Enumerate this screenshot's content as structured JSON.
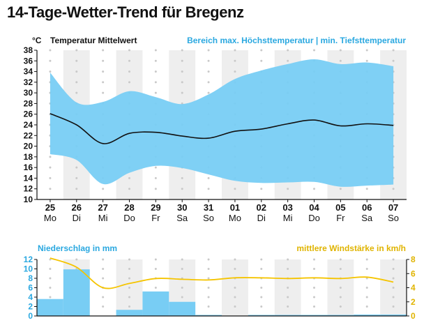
{
  "title": "14-Tage-Wetter-Trend für Bregenz",
  "colors": {
    "band": "#78cdf4",
    "mean_line": "#111111",
    "stripe": "#eeeeee",
    "dots": "#c9c9c9",
    "precip": "#78cdf4",
    "wind": "#f5c400",
    "blue_text": "#2aa8e0",
    "yellow_text": "#e0b400"
  },
  "chart_data": [
    {
      "type": "area",
      "unit_label": "°C",
      "series_label_mean": "Temperatur Mittelwert",
      "series_label_range": "Bereich max. Höchsttemperatur | min. Tiefsttemperatur",
      "ylim": [
        10,
        38
      ],
      "yticks": [
        "38",
        "36",
        "34",
        "32",
        "30",
        "28",
        "26",
        "24",
        "22",
        "20",
        "18",
        "16",
        "14",
        "12",
        "10"
      ],
      "x_days": [
        "25",
        "26",
        "27",
        "28",
        "29",
        "30",
        "31",
        "01",
        "02",
        "03",
        "04",
        "05",
        "06",
        "07"
      ],
      "x_weekdays": [
        "Mo",
        "Di",
        "Mi",
        "Do",
        "Fr",
        "Sa",
        "So",
        "Mo",
        "Di",
        "Mi",
        "Do",
        "Fr",
        "Sa",
        "So"
      ],
      "series": [
        {
          "name": "Temperatur Mittelwert",
          "values": [
            26.1,
            24.0,
            20.5,
            22.4,
            22.6,
            21.9,
            21.5,
            22.8,
            23.2,
            24.2,
            24.9,
            23.8,
            24.2,
            23.9
          ]
        },
        {
          "name": "max. Höchsttemperatur",
          "values": [
            33.8,
            28.2,
            28.3,
            30.3,
            29.2,
            27.9,
            29.7,
            32.6,
            34.2,
            35.4,
            36.3,
            35.4,
            35.7,
            35.0
          ]
        },
        {
          "name": "min. Tiefsttemperatur",
          "values": [
            18.5,
            17.4,
            12.9,
            15.0,
            16.3,
            15.9,
            14.7,
            13.5,
            13.1,
            13.2,
            13.3,
            12.4,
            12.6,
            12.8
          ]
        }
      ],
      "grid": "dotted"
    },
    {
      "type": "bar",
      "left_label": "Niederschlag in mm",
      "right_label": "mittlere Windstärke in km/h",
      "ylim_left": [
        0,
        12
      ],
      "yticks_left": [
        "12",
        "10",
        "8",
        "6",
        "4",
        "2",
        "0"
      ],
      "ylim_right": [
        0,
        8
      ],
      "yticks_right": [
        "8",
        "6",
        "4",
        "2",
        "0"
      ],
      "series": [
        {
          "name": "Niederschlag in mm",
          "values": [
            3.6,
            9.9,
            0.0,
            1.3,
            5.2,
            3.0,
            0.1,
            0.0,
            0.1,
            0.1,
            0.2,
            0.2,
            0.3,
            0.3
          ]
        },
        {
          "name": "mittlere Windstärke in km/h",
          "values": [
            8.2,
            6.9,
            4.0,
            4.6,
            5.3,
            5.2,
            5.1,
            5.4,
            5.4,
            5.3,
            5.4,
            5.3,
            5.5,
            4.8
          ]
        }
      ],
      "grid": "dotted"
    }
  ]
}
